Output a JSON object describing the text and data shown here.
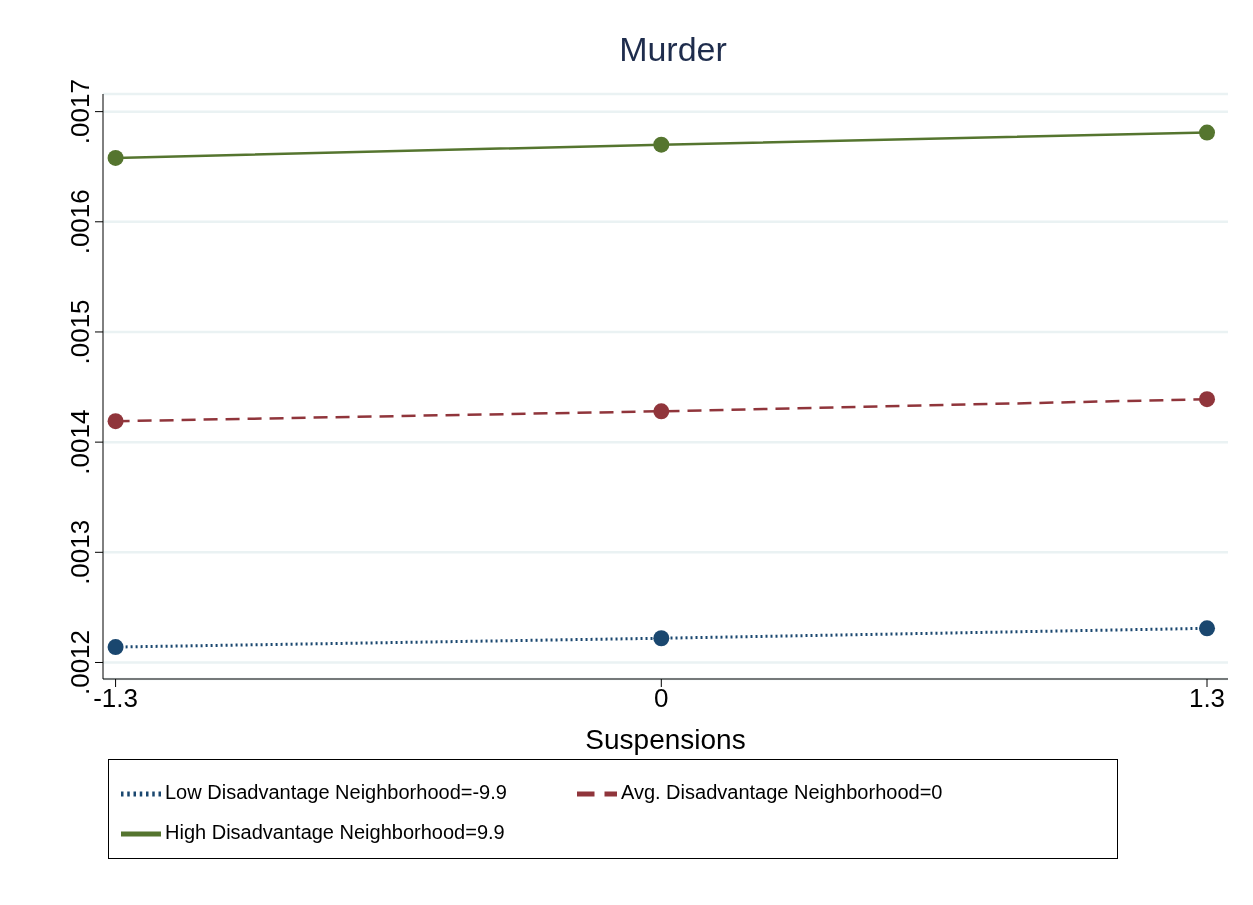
{
  "chart_data": {
    "type": "line",
    "title": "Murder",
    "xlabel": "Suspensions",
    "x": [
      -1.3,
      0,
      1.3
    ],
    "series": [
      {
        "name": "Low Disadvantage Neighborhood=-9.9",
        "color": "#1a476f",
        "values": [
          0.001214,
          0.001222,
          0.001231
        ],
        "line_style": "dotted"
      },
      {
        "name": "Avg. Disadvantage Neighborhood=0",
        "color": "#90353b",
        "values": [
          0.001419,
          0.001428,
          0.001439
        ],
        "line_style": "dashed"
      },
      {
        "name": "High Disadvantage Neighborhood=9.9",
        "color": "#55752f",
        "values": [
          0.001658,
          0.00167,
          0.001681
        ],
        "line_style": "solid"
      }
    ],
    "xlim": [
      -1.33,
      1.35
    ],
    "xticks": [
      -1.3,
      0,
      1.3
    ],
    "ylim": [
      0.001185,
      0.001716
    ],
    "yticks": [
      {
        "value": 0.0012,
        "label": ".0012"
      },
      {
        "value": 0.0013,
        "label": ".0013"
      },
      {
        "value": 0.0014,
        "label": ".0014"
      },
      {
        "value": 0.0015,
        "label": ".0015"
      },
      {
        "value": 0.0016,
        "label": ".0016"
      },
      {
        "value": 0.0017,
        "label": ".0017"
      }
    ],
    "grid": "y",
    "legend": "bottom",
    "marker": "circle"
  }
}
